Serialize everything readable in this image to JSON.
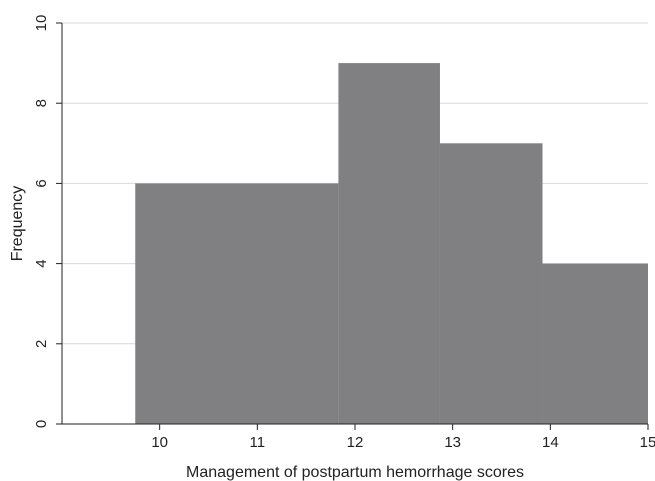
{
  "chart_data": {
    "type": "bar",
    "subtype": "histogram",
    "bins": [
      {
        "start": 9.75,
        "end": 11.83,
        "value": 6
      },
      {
        "start": 11.83,
        "end": 12.87,
        "value": 9
      },
      {
        "start": 12.87,
        "end": 13.92,
        "value": 7
      },
      {
        "start": 13.92,
        "end": 15.0,
        "value": 4
      }
    ],
    "xlabel": "Management of postpartum hemorrhage scores",
    "ylabel": "Frequency",
    "xlim": [
      9.0,
      15.0
    ],
    "ylim": [
      0,
      10
    ],
    "xticks": [
      "10",
      "11",
      "12",
      "13",
      "14",
      "15"
    ],
    "yticks": [
      "0",
      "2",
      "4",
      "6",
      "8",
      "10"
    ],
    "grid": "horizontal",
    "bar_color": "#808083"
  }
}
